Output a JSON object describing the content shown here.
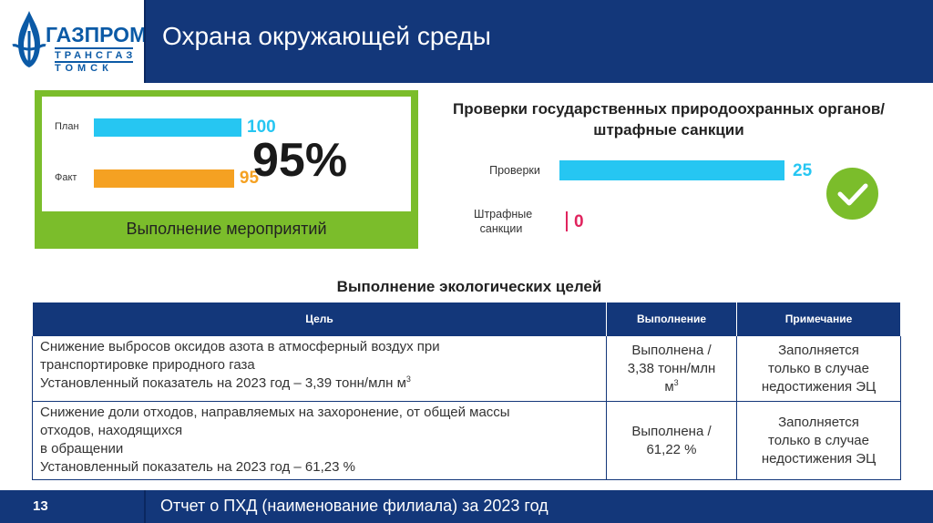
{
  "header": {
    "title": "Охрана окружающей среды",
    "logo": {
      "name": "ГАЗПРОМ",
      "line2": "ТРАНСГАЗ",
      "line3": "ТОМСК"
    }
  },
  "execution_panel": {
    "caption": "Выполнение мероприятий",
    "percent_label": "95%",
    "rows": [
      {
        "label": "План",
        "value": "100",
        "color": "#26c6f2"
      },
      {
        "label": "Факт",
        "value": "95",
        "color": "#f5a122"
      }
    ]
  },
  "checks_chart": {
    "title": "Проверки государственных природоохранных органов/штрафные санкции",
    "rows": [
      {
        "label": "Проверки",
        "value": "25",
        "color": "#26c6f2"
      },
      {
        "label": "Штрафные санкции",
        "value": "0",
        "color": "#e0245e"
      }
    ],
    "status_icon": "checkmark-icon"
  },
  "chart_data": [
    {
      "type": "bar",
      "orientation": "horizontal",
      "categories": [
        "План",
        "Факт"
      ],
      "values": [
        100,
        95
      ],
      "colors": [
        "#26c6f2",
        "#f5a122"
      ]
    },
    {
      "type": "bar",
      "orientation": "horizontal",
      "title": "Проверки государственных природоохранных органов/штрафные санкции",
      "categories": [
        "Проверки",
        "Штрафные санкции"
      ],
      "values": [
        25,
        0
      ],
      "colors": [
        "#26c6f2",
        "#e0245e"
      ]
    }
  ],
  "goals_table": {
    "title": "Выполнение экологических целей",
    "columns": [
      "Цель",
      "Выполнение",
      "Примечание"
    ],
    "rows": [
      {
        "goal_lines": [
          "Снижение выбросов оксидов азота в атмосферный воздух при",
          "транспортировке природного газа",
          "Установленный показатель на 2023 год – 3,39 тонн/млн м"
        ],
        "goal_sup": "3",
        "execution_lines": [
          "Выполнена /",
          "3,38 тонн/млн",
          "м"
        ],
        "execution_sup": "3",
        "note_lines": [
          "Заполняется",
          "только в случае",
          "недостижения ЭЦ"
        ]
      },
      {
        "goal_lines": [
          "Снижение доли отходов, направляемых на захоронение, от общей массы",
          "отходов, находящихся",
          "в обращении",
          "Установленный показатель на 2023 год – 61,23 %"
        ],
        "execution_lines": [
          "Выполнена /",
          "61,22 %"
        ],
        "note_lines": [
          "Заполняется",
          "только в случае",
          "недостижения ЭЦ"
        ]
      }
    ]
  },
  "footer": {
    "page_number": "13",
    "text": "Отчет о ПХД (наименование филиала) за 2023 год"
  },
  "colors": {
    "header_bg": "#13377a",
    "accent_green": "#7bbd2b",
    "plan_bar": "#26c6f2",
    "fact_bar": "#f5a122",
    "penalty_bar": "#e0245e"
  }
}
